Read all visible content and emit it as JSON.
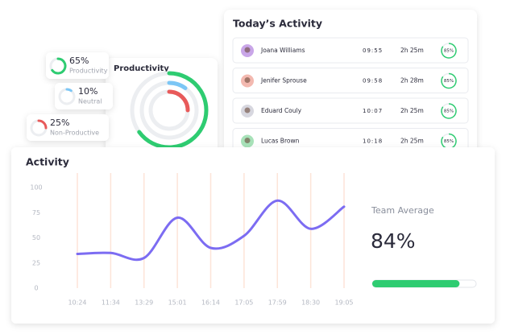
{
  "chart_data": [
    {
      "type": "line",
      "title": "Activity",
      "categories": [
        "10:24",
        "11:34",
        "13:29",
        "15:01",
        "16:14",
        "17:05",
        "17:59",
        "18:30",
        "19:05"
      ],
      "values": [
        34,
        35,
        30,
        70,
        40,
        52,
        87,
        59,
        81
      ],
      "color": "#7c6cf2",
      "ylim": [
        0,
        100
      ],
      "yticks": [
        0,
        25,
        50,
        75,
        100
      ],
      "grid": true
    },
    {
      "type": "radial",
      "title": "Productivity",
      "categories": [
        "Productivity",
        "Neutral",
        "Non-Productive"
      ],
      "values": [
        65,
        10,
        25
      ],
      "value_labels": [
        "65%",
        "10%",
        "25%"
      ],
      "colors": [
        "#2ecc71",
        "#7cc6f5",
        "#e85a5a"
      ]
    }
  ],
  "today_activity": {
    "title": "Today’s Activity",
    "rows": [
      {
        "name": "Joana Williams",
        "time": "09:55",
        "duration": "2h 25m",
        "score": 85,
        "score_label": "85%"
      },
      {
        "name": "Jenifer Sprouse",
        "time": "09:58",
        "duration": "2h 28m",
        "score": 85,
        "score_label": "85%"
      },
      {
        "name": "Eduard Couly",
        "time": "10:07",
        "duration": "2h 25m",
        "score": 85,
        "score_label": "85%"
      },
      {
        "name": "Lucas Brown",
        "time": "10:18",
        "duration": "2h 25m",
        "score": 85,
        "score_label": "85%"
      }
    ]
  },
  "team_average": {
    "label": "Team Average",
    "value": 84,
    "value_label": "84%"
  }
}
